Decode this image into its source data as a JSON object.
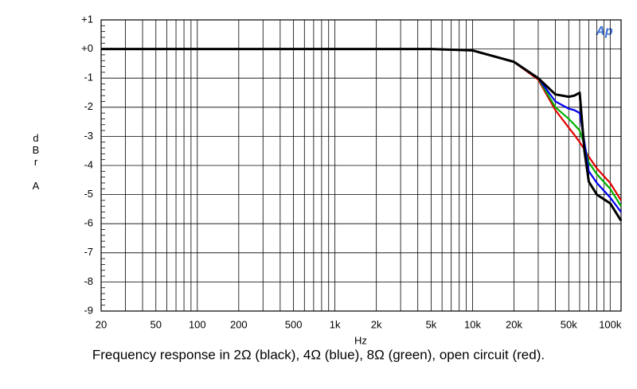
{
  "chart_data": {
    "type": "line",
    "title": "Frequency response in 2Ω (black), 4Ω (blue), 8Ω (green), open circuit (red).",
    "x_label": "Hz",
    "y_label": "dBr A",
    "logo": "Ap",
    "x_log": true,
    "grid": true,
    "x": [
      20,
      100,
      1000,
      5000,
      10000,
      20000,
      30000,
      40000,
      50000,
      55000,
      60000,
      65000,
      70000,
      80000,
      100000,
      120000
    ],
    "series": [
      {
        "name": "open circuit",
        "color": "#e00000",
        "values": [
          0,
          0,
          0,
          0,
          -0.05,
          -0.45,
          -1.05,
          -2.1,
          -2.7,
          -2.95,
          -3.2,
          -3.45,
          -3.7,
          -4.1,
          -4.6,
          -5.2
        ]
      },
      {
        "name": "8Ω",
        "color": "#00b000",
        "values": [
          0,
          0,
          0,
          0,
          -0.05,
          -0.45,
          -1.0,
          -2.0,
          -2.4,
          -2.6,
          -2.8,
          -3.3,
          -3.9,
          -4.3,
          -4.8,
          -5.4
        ]
      },
      {
        "name": "4Ω",
        "color": "#0000ee",
        "values": [
          0,
          0,
          0,
          0,
          -0.05,
          -0.45,
          -1.0,
          -1.8,
          -2.05,
          -2.1,
          -2.2,
          -3.2,
          -4.2,
          -4.6,
          -5.1,
          -5.6
        ]
      },
      {
        "name": "2Ω",
        "color": "#000000",
        "values": [
          0,
          0,
          0,
          0,
          -0.05,
          -0.44,
          -1.0,
          -1.56,
          -1.64,
          -1.6,
          -1.5,
          -3.5,
          -4.56,
          -5.0,
          -5.3,
          -5.9
        ]
      }
    ],
    "xlim": [
      20,
      120000
    ],
    "ylim": [
      -9,
      1
    ],
    "xticks": [
      20,
      50,
      100,
      200,
      500,
      {
        "value": 1000,
        "label": "1k"
      },
      {
        "value": 2000,
        "label": "2k"
      },
      {
        "value": 5000,
        "label": "5k"
      },
      {
        "value": 10000,
        "label": "10k"
      },
      {
        "value": 20000,
        "label": "20k"
      },
      {
        "value": 50000,
        "label": "50k"
      },
      {
        "value": 100000,
        "label": "100k"
      }
    ],
    "x_minor_ticks": [
      30,
      40,
      60,
      70,
      80,
      90,
      300,
      400,
      600,
      700,
      800,
      900,
      3000,
      4000,
      6000,
      7000,
      8000,
      9000,
      30000,
      40000,
      60000,
      70000,
      80000,
      90000
    ],
    "yticks": [
      {
        "value": 1,
        "label": "+1"
      },
      {
        "value": 0,
        "label": "+0"
      },
      -1,
      -2,
      -3,
      -4,
      -5,
      -6,
      -7,
      -8,
      -9
    ]
  }
}
